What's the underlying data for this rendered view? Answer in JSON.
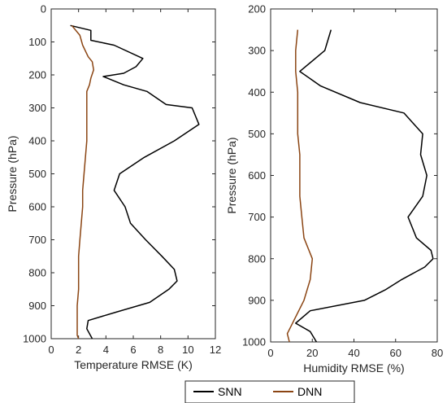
{
  "chart_data": [
    {
      "type": "line",
      "xlabel": "Temperature RMSE (K)",
      "ylabel": "Pressure (hPa)",
      "xlim": [
        0,
        12
      ],
      "ylim": [
        0,
        1000
      ],
      "y_reversed": true,
      "xticks": [
        0,
        2,
        4,
        6,
        8,
        10,
        12
      ],
      "yticks": [
        0,
        100,
        200,
        300,
        400,
        500,
        600,
        700,
        800,
        900,
        1000
      ],
      "grid": false,
      "series": [
        {
          "name": "SNN",
          "color": "#000000",
          "points": [
            [
              1.4,
              50
            ],
            [
              2.9,
              65
            ],
            [
              2.9,
              95
            ],
            [
              4.6,
              110
            ],
            [
              6.7,
              150
            ],
            [
              6.2,
              175
            ],
            [
              5.3,
              195
            ],
            [
              3.8,
              205
            ],
            [
              5.3,
              230
            ],
            [
              7.0,
              250
            ],
            [
              8.4,
              290
            ],
            [
              10.3,
              300
            ],
            [
              10.8,
              350
            ],
            [
              9.0,
              400
            ],
            [
              6.8,
              450
            ],
            [
              5.0,
              500
            ],
            [
              4.6,
              550
            ],
            [
              5.4,
              600
            ],
            [
              5.8,
              650
            ],
            [
              6.9,
              700
            ],
            [
              8.1,
              750
            ],
            [
              9.0,
              790
            ],
            [
              9.2,
              825
            ],
            [
              8.6,
              850
            ],
            [
              7.2,
              890
            ],
            [
              4.7,
              920
            ],
            [
              2.7,
              945
            ],
            [
              2.6,
              970
            ],
            [
              3.0,
              1000
            ]
          ]
        },
        {
          "name": "DNN",
          "color": "#8B4513",
          "points": [
            [
              1.5,
              50
            ],
            [
              2.1,
              80
            ],
            [
              2.3,
              110
            ],
            [
              2.7,
              145
            ],
            [
              3.0,
              160
            ],
            [
              3.1,
              185
            ],
            [
              2.9,
              210
            ],
            [
              2.8,
              230
            ],
            [
              2.6,
              250
            ],
            [
              2.6,
              300
            ],
            [
              2.6,
              350
            ],
            [
              2.6,
              400
            ],
            [
              2.5,
              450
            ],
            [
              2.4,
              500
            ],
            [
              2.3,
              550
            ],
            [
              2.3,
              600
            ],
            [
              2.2,
              650
            ],
            [
              2.1,
              700
            ],
            [
              2.0,
              750
            ],
            [
              2.0,
              800
            ],
            [
              2.0,
              850
            ],
            [
              1.9,
              900
            ],
            [
              1.9,
              950
            ],
            [
              1.9,
              990
            ],
            [
              2.0,
              1000
            ]
          ]
        }
      ]
    },
    {
      "type": "line",
      "xlabel": "Humidity RMSE (%)",
      "ylabel": "Pressure (hPa)",
      "xlim": [
        0,
        80
      ],
      "ylim": [
        200,
        1000
      ],
      "y_reversed": true,
      "xticks": [
        0,
        20,
        40,
        60,
        80
      ],
      "yticks": [
        200,
        300,
        400,
        500,
        600,
        700,
        800,
        900,
        1000
      ],
      "grid": false,
      "series": [
        {
          "name": "SNN",
          "color": "#000000",
          "points": [
            [
              29,
              250
            ],
            [
              26,
              300
            ],
            [
              14,
              350
            ],
            [
              24,
              385
            ],
            [
              43,
              425
            ],
            [
              64,
              450
            ],
            [
              73,
              500
            ],
            [
              72,
              550
            ],
            [
              75,
              600
            ],
            [
              73,
              650
            ],
            [
              66,
              700
            ],
            [
              70,
              750
            ],
            [
              77,
              780
            ],
            [
              78,
              800
            ],
            [
              74,
              820
            ],
            [
              63,
              850
            ],
            [
              55,
              875
            ],
            [
              45,
              900
            ],
            [
              19,
              925
            ],
            [
              12,
              955
            ],
            [
              19,
              975
            ],
            [
              22,
              1000
            ]
          ]
        },
        {
          "name": "DNN",
          "color": "#8B4513",
          "points": [
            [
              13,
              250
            ],
            [
              12,
              300
            ],
            [
              12,
              350
            ],
            [
              13,
              400
            ],
            [
              13,
              450
            ],
            [
              13,
              500
            ],
            [
              14,
              550
            ],
            [
              14,
              600
            ],
            [
              14,
              650
            ],
            [
              15,
              700
            ],
            [
              16,
              750
            ],
            [
              20,
              800
            ],
            [
              19,
              850
            ],
            [
              16,
              900
            ],
            [
              11,
              950
            ],
            [
              8,
              980
            ],
            [
              9,
              1000
            ]
          ]
        }
      ]
    }
  ],
  "legend": {
    "placement": "bottom-right",
    "entries": [
      "SNN",
      "DNN"
    ]
  }
}
